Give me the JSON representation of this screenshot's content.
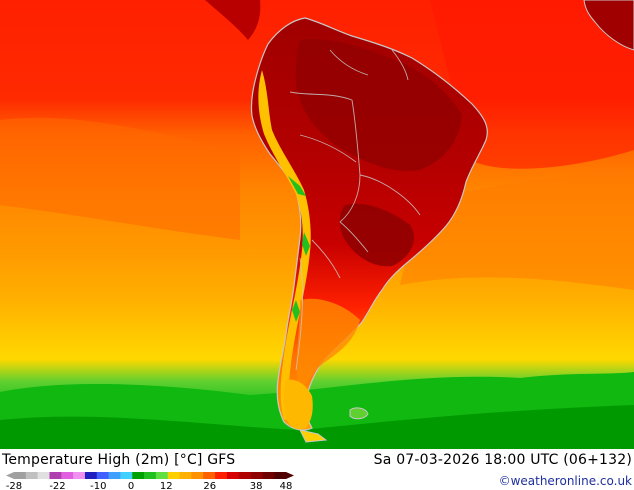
{
  "map": {
    "title": "Temperature High (2m) [°C] GFS",
    "valid_time": "Sa 07-03-2026 18:00 UTC (06+132)",
    "credit": "©weatheronline.co.uk"
  },
  "legend": {
    "ticks": [
      "-28",
      "-22",
      "-10",
      "0",
      "12",
      "26",
      "38",
      "48"
    ],
    "colors": [
      "#a0a0a0",
      "#c0c0c0",
      "#e0e0e0",
      "#b040b0",
      "#e060e0",
      "#f090f0",
      "#2020c0",
      "#4060ff",
      "#40a0ff",
      "#40d0ff",
      "#00a000",
      "#20c020",
      "#60e040",
      "#ffd000",
      "#ffb000",
      "#ff9000",
      "#ff6000",
      "#ff2000",
      "#d80000",
      "#b00000",
      "#900000",
      "#700000",
      "#500000"
    ]
  },
  "palette": {
    "ocean_hot": "#ff1a00",
    "ocean_warm": "#ff7700",
    "ocean_mild": "#ffaa00",
    "ocean_cool": "#ffd000",
    "ocean_cold": "#00c000",
    "land_hot": "#b00000",
    "land_very_hot": "#900000",
    "land_warm": "#ff5000",
    "mountain": "#ffc800",
    "coast": "#c8c8c8"
  }
}
